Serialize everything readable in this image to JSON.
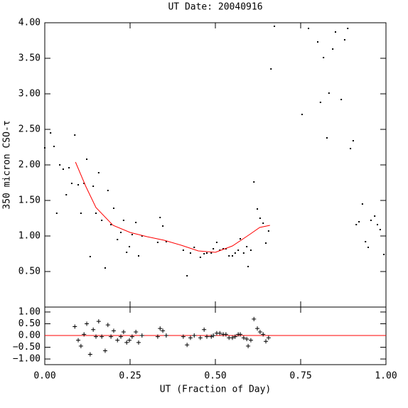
{
  "chart_data": [
    {
      "type": "scatter",
      "title": "UT Date: 20040916",
      "y_label": "350 micron CSO-τ",
      "xlim": [
        0,
        1
      ],
      "xticks": [
        0,
        0.25,
        0.5,
        0.75,
        1
      ],
      "ylim": [
        0,
        4
      ],
      "yticks": [
        {
          "value": 0.5,
          "label": "0.50"
        },
        {
          "value": 1,
          "label": "1.00"
        },
        {
          "value": 1.5,
          "label": "1.50"
        },
        {
          "value": 2,
          "label": "2.00"
        },
        {
          "value": 2.5,
          "label": "2.50"
        },
        {
          "value": 3,
          "label": "3.00"
        },
        {
          "value": 3.5,
          "label": "3.50"
        },
        {
          "value": 4,
          "label": "4.00"
        }
      ],
      "series": [
        {
          "type": "scatter",
          "color": "#000000",
          "x": [
            0.0,
            0.017,
            0.027,
            0.035,
            0.044,
            0.054,
            0.063,
            0.071,
            0.079,
            0.088,
            0.098,
            0.106,
            0.115,
            0.123,
            0.133,
            0.142,
            0.15,
            0.158,
            0.167,
            0.177,
            0.185,
            0.194,
            0.202,
            0.213,
            0.223,
            0.231,
            0.24,
            0.248,
            0.256,
            0.267,
            0.275,
            0.285,
            0.331,
            0.338,
            0.346,
            0.356,
            0.406,
            0.417,
            0.427,
            0.438,
            0.456,
            0.467,
            0.475,
            0.488,
            0.494,
            0.504,
            0.513,
            0.523,
            0.531,
            0.54,
            0.55,
            0.558,
            0.567,
            0.573,
            0.583,
            0.592,
            0.596,
            0.604,
            0.613,
            0.623,
            0.631,
            0.64,
            0.648,
            0.656,
            0.663,
            0.673,
            0.754,
            0.773,
            0.8,
            0.808,
            0.817,
            0.827,
            0.833,
            0.844,
            0.852,
            0.869,
            0.879,
            0.888,
            0.896,
            0.904,
            0.913,
            0.921,
            0.931,
            0.94,
            0.948,
            0.956,
            0.967,
            0.975,
            0.983,
            0.994
          ],
          "values": [
            2.24,
            2.45,
            2.26,
            1.32,
            2.0,
            1.94,
            1.58,
            1.96,
            1.74,
            2.42,
            1.72,
            1.32,
            1.74,
            2.08,
            0.71,
            1.7,
            1.32,
            1.89,
            1.22,
            0.55,
            1.64,
            1.16,
            1.39,
            0.95,
            1.05,
            1.22,
            0.77,
            0.85,
            1.02,
            1.19,
            0.72,
            1.0,
            0.91,
            1.26,
            1.14,
            0.92,
            0.8,
            0.44,
            0.76,
            0.84,
            0.7,
            0.75,
            0.76,
            0.76,
            0.82,
            0.91,
            0.8,
            0.82,
            0.82,
            0.72,
            0.72,
            0.76,
            0.8,
            0.96,
            0.76,
            0.85,
            0.57,
            0.8,
            1.76,
            1.38,
            1.25,
            1.18,
            0.9,
            1.07,
            3.35,
            3.95,
            2.71,
            3.92,
            3.73,
            2.88,
            3.51,
            2.38,
            3.01,
            3.63,
            3.87,
            2.92,
            3.76,
            3.92,
            2.23,
            2.34,
            1.16,
            1.2,
            1.45,
            0.92,
            0.84,
            1.22,
            1.28,
            1.16,
            1.09,
            0.74
          ]
        },
        {
          "type": "line",
          "color": "#ff0000",
          "x": [
            0.09,
            0.12,
            0.15,
            0.2,
            0.25,
            0.3,
            0.35,
            0.4,
            0.45,
            0.5,
            0.55,
            0.6,
            0.63,
            0.66
          ],
          "values": [
            2.04,
            1.7,
            1.4,
            1.15,
            1.05,
            0.99,
            0.94,
            0.87,
            0.79,
            0.77,
            0.86,
            1.02,
            1.12,
            1.15
          ]
        }
      ]
    },
    {
      "type": "residual",
      "x_label": "UT (Fraction of Day)",
      "xlim": [
        0,
        1
      ],
      "xticks": [
        {
          "value": 0,
          "label": "0.00"
        },
        {
          "value": 0.25,
          "label": "0.25"
        },
        {
          "value": 0.5,
          "label": "0.50"
        },
        {
          "value": 0.75,
          "label": "0.75"
        },
        {
          "value": 1,
          "label": "1.00"
        }
      ],
      "ylim": [
        -1.24,
        1.21
      ],
      "yticks": [
        {
          "value": -1,
          "label": "−1.00"
        },
        {
          "value": -0.5,
          "label": "−0.50"
        },
        {
          "value": 0,
          "label": "0.00"
        },
        {
          "value": 0.5,
          "label": "0.50"
        },
        {
          "value": 1,
          "label": "1.00"
        }
      ],
      "hline": 0,
      "hline_color": "#ff0000",
      "series": [
        {
          "color": "#000000",
          "x": [
            0.088,
            0.098,
            0.106,
            0.115,
            0.123,
            0.133,
            0.142,
            0.15,
            0.158,
            0.167,
            0.177,
            0.185,
            0.194,
            0.202,
            0.213,
            0.223,
            0.231,
            0.24,
            0.248,
            0.256,
            0.267,
            0.275,
            0.285,
            0.331,
            0.338,
            0.346,
            0.356,
            0.406,
            0.417,
            0.427,
            0.438,
            0.456,
            0.467,
            0.475,
            0.488,
            0.494,
            0.504,
            0.513,
            0.523,
            0.531,
            0.54,
            0.55,
            0.558,
            0.567,
            0.573,
            0.583,
            0.592,
            0.596,
            0.604,
            0.613,
            0.623,
            0.631,
            0.64,
            0.648,
            0.656
          ],
          "values": [
            0.38,
            -0.2,
            -0.45,
            0.05,
            0.5,
            -0.8,
            0.25,
            -0.05,
            0.6,
            -0.05,
            -0.65,
            0.45,
            -0.05,
            0.2,
            -0.2,
            -0.05,
            0.15,
            -0.3,
            -0.2,
            -0.05,
            0.15,
            -0.3,
            0.0,
            -0.05,
            0.3,
            0.2,
            0.0,
            -0.05,
            -0.4,
            -0.1,
            0.0,
            -0.1,
            0.25,
            -0.05,
            -0.05,
            0.0,
            0.1,
            0.1,
            0.05,
            0.05,
            -0.1,
            -0.1,
            -0.05,
            0.05,
            0.05,
            -0.1,
            -0.15,
            -0.45,
            -0.2,
            0.7,
            0.3,
            0.15,
            0.05,
            -0.25,
            -0.1
          ]
        }
      ]
    }
  ]
}
